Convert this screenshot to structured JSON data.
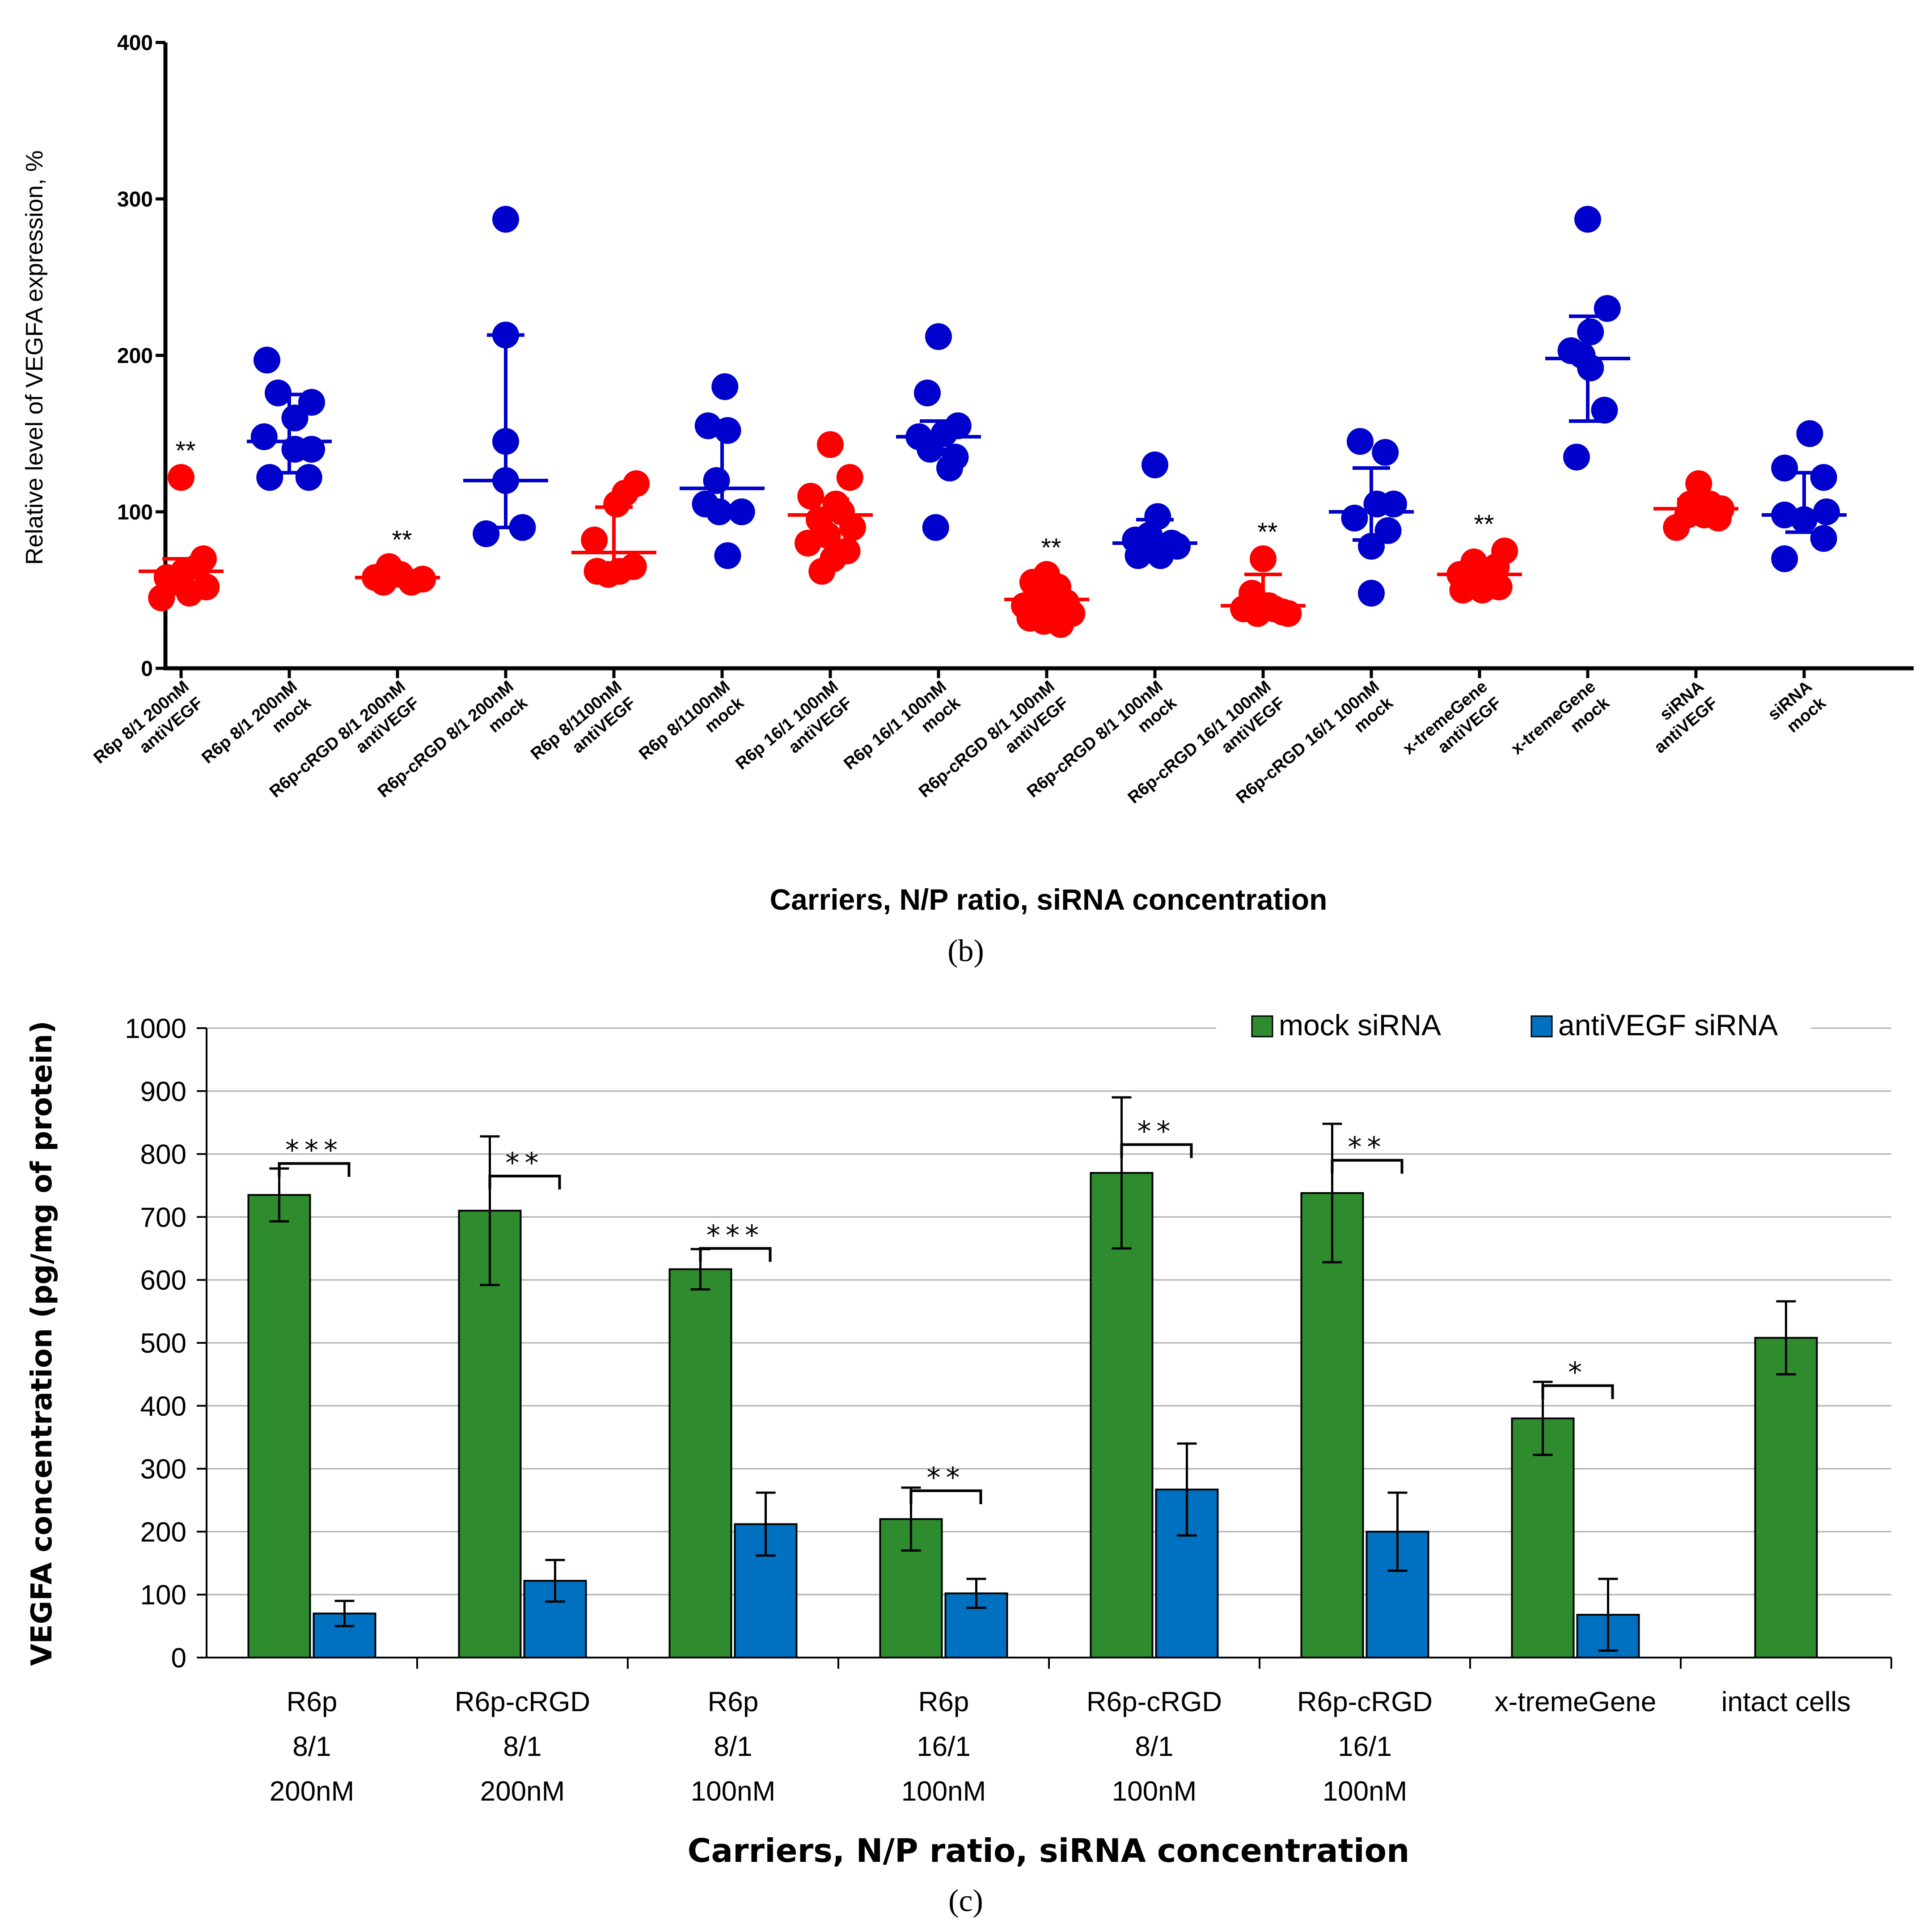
{
  "chart_data": [
    {
      "panel": "b-top",
      "type": "scatter",
      "title": "",
      "xlabel": "Carriers, N/P ratio, siRNA concentration",
      "ylabel": "Relative level of VEGFA expression, %",
      "ylim": [
        0,
        400
      ],
      "yticks": [
        "0",
        "100",
        "200",
        "300",
        "400"
      ],
      "grid": false,
      "colors": {
        "antiVEGF": "#ff0000",
        "mock": "#0000cc"
      },
      "groups": [
        {
          "label": [
            "R6p 8/1 200nM",
            "antiVEGF"
          ],
          "kind": "antiVEGF",
          "sig": "**",
          "mean": 62,
          "lower": 52,
          "upper": 70,
          "points": [
            [
              -0.35,
              45
            ],
            [
              -0.25,
              58
            ],
            [
              -0.1,
              55
            ],
            [
              0.05,
              62
            ],
            [
              0.15,
              48
            ],
            [
              0.3,
              65
            ],
            [
              0.4,
              70
            ],
            [
              0.45,
              52
            ],
            [
              0,
              122
            ]
          ]
        },
        {
          "label": [
            "R6p 8/1 200nM",
            "mock"
          ],
          "kind": "mock",
          "sig": "",
          "mean": 145,
          "lower": 125,
          "upper": 175,
          "points": [
            [
              -0.4,
              197
            ],
            [
              -0.45,
              148
            ],
            [
              -0.35,
              122
            ],
            [
              -0.2,
              176
            ],
            [
              0.1,
              160
            ],
            [
              0.1,
              140
            ],
            [
              0.4,
              170
            ],
            [
              0.4,
              140
            ],
            [
              0.35,
              122
            ]
          ]
        },
        {
          "label": [
            "R6p-cRGD 8/1 200nM",
            "antiVEGF"
          ],
          "kind": "antiVEGF",
          "sig": "**",
          "mean": 58,
          "lower": 55,
          "upper": 62,
          "points": [
            [
              -0.4,
              58
            ],
            [
              -0.15,
              65
            ],
            [
              0.05,
              60
            ],
            [
              0.25,
              55
            ],
            [
              0.45,
              57
            ],
            [
              -0.25,
              55
            ]
          ]
        },
        {
          "label": [
            "R6p-cRGD 8/1 200nM",
            "mock"
          ],
          "kind": "mock",
          "sig": "",
          "mean": 120,
          "lower": 90,
          "upper": 213,
          "points": [
            [
              0,
              287
            ],
            [
              0,
              213
            ],
            [
              0,
              145
            ],
            [
              0,
              120
            ],
            [
              -0.35,
              86
            ],
            [
              0.3,
              90
            ]
          ]
        },
        {
          "label": [
            "R6p 8/1100nM",
            "antiVEGF"
          ],
          "kind": "antiVEGF",
          "sig": "",
          "mean": 74,
          "lower": 62,
          "upper": 103,
          "points": [
            [
              -0.35,
              82
            ],
            [
              -0.3,
              62
            ],
            [
              -0.1,
              60
            ],
            [
              0.05,
              105
            ],
            [
              0.2,
              112
            ],
            [
              0.4,
              118
            ],
            [
              0.35,
              65
            ],
            [
              0.1,
              62
            ]
          ]
        },
        {
          "label": [
            "R6p 8/1100nM",
            "mock"
          ],
          "kind": "mock",
          "sig": "",
          "mean": 115,
          "lower": 100,
          "upper": 153,
          "points": [
            [
              -0.25,
              155
            ],
            [
              0.05,
              180
            ],
            [
              0.1,
              152
            ],
            [
              -0.1,
              120
            ],
            [
              -0.3,
              105
            ],
            [
              -0.05,
              100
            ],
            [
              0.35,
              100
            ],
            [
              0.1,
              72
            ]
          ]
        },
        {
          "label": [
            "R6p 16/1 100nM",
            "antiVEGF"
          ],
          "kind": "antiVEGF",
          "sig": "",
          "mean": 98,
          "lower": 88,
          "upper": 108,
          "points": [
            [
              0,
              143
            ],
            [
              0.35,
              122
            ],
            [
              -0.35,
              110
            ],
            [
              -0.2,
              95
            ],
            [
              0.1,
              105
            ],
            [
              0.4,
              90
            ],
            [
              -0.4,
              80
            ],
            [
              0.3,
              75
            ],
            [
              0.05,
              70
            ],
            [
              -0.15,
              62
            ],
            [
              0.2,
              100
            ],
            [
              -0.05,
              85
            ]
          ]
        },
        {
          "label": [
            "R6p 16/1 100nM",
            "mock"
          ],
          "kind": "mock",
          "sig": "",
          "mean": 148,
          "lower": 140,
          "upper": 158,
          "points": [
            [
              0,
              212
            ],
            [
              -0.2,
              176
            ],
            [
              0.35,
              155
            ],
            [
              0.1,
              150
            ],
            [
              -0.35,
              148
            ],
            [
              -0.15,
              140
            ],
            [
              0.2,
              128
            ],
            [
              -0.05,
              90
            ],
            [
              0.3,
              135
            ]
          ]
        },
        {
          "label": [
            "R6p-cRGD 8/1 100nM",
            "antiVEGF"
          ],
          "kind": "antiVEGF",
          "sig": "**",
          "mean": 44,
          "lower": 38,
          "upper": 50,
          "points": [
            [
              0,
              60
            ],
            [
              -0.25,
              55
            ],
            [
              0.2,
              52
            ],
            [
              -0.4,
              40
            ],
            [
              -0.1,
              45
            ],
            [
              0.1,
              38
            ],
            [
              0.35,
              42
            ],
            [
              -0.3,
              32
            ],
            [
              -0.05,
              30
            ],
            [
              0.25,
              28
            ],
            [
              0.45,
              35
            ]
          ]
        },
        {
          "label": [
            "R6p-cRGD 8/1 100nM",
            "mock"
          ],
          "kind": "mock",
          "sig": "",
          "mean": 80,
          "lower": 72,
          "upper": 95,
          "points": [
            [
              0,
              130
            ],
            [
              0.05,
              97
            ],
            [
              -0.35,
              82
            ],
            [
              -0.1,
              85
            ],
            [
              0.3,
              80
            ],
            [
              -0.3,
              72
            ],
            [
              0.1,
              72
            ],
            [
              0.4,
              78
            ]
          ]
        },
        {
          "label": [
            "R6p-cRGD 16/1 100nM",
            "antiVEGF"
          ],
          "kind": "antiVEGF",
          "sig": "**",
          "mean": 40,
          "lower": 36,
          "upper": 60,
          "points": [
            [
              0,
              70
            ],
            [
              -0.2,
              48
            ],
            [
              -0.35,
              38
            ],
            [
              0.1,
              40
            ],
            [
              0.35,
              36
            ],
            [
              0.45,
              35
            ],
            [
              -0.1,
              35
            ],
            [
              0.2,
              38
            ]
          ]
        },
        {
          "label": [
            "R6p-cRGD 16/1 100nM",
            "mock"
          ],
          "kind": "mock",
          "sig": "",
          "mean": 100,
          "lower": 82,
          "upper": 128,
          "points": [
            [
              -0.2,
              145
            ],
            [
              0.25,
              138
            ],
            [
              -0.3,
              96
            ],
            [
              0.1,
              105
            ],
            [
              0.4,
              105
            ],
            [
              0.3,
              88
            ],
            [
              0,
              78
            ],
            [
              0,
              48
            ]
          ]
        },
        {
          "label": [
            "x-tremeGene",
            "antiVEGF"
          ],
          "kind": "antiVEGF",
          "sig": "**",
          "mean": 60,
          "lower": 55,
          "upper": 68,
          "points": [
            [
              -0.35,
              60
            ],
            [
              -0.1,
              68
            ],
            [
              0.1,
              58
            ],
            [
              0.3,
              65
            ],
            [
              0.45,
              75
            ],
            [
              -0.3,
              50
            ],
            [
              0.05,
              50
            ],
            [
              0.35,
              52
            ]
          ]
        },
        {
          "label": [
            "x-tremeGene",
            "mock"
          ],
          "kind": "mock",
          "sig": "",
          "mean": 198,
          "lower": 158,
          "upper": 225,
          "points": [
            [
              0,
              287
            ],
            [
              0.35,
              230
            ],
            [
              0.05,
              215
            ],
            [
              -0.3,
              203
            ],
            [
              -0.1,
              200
            ],
            [
              0.05,
              192
            ],
            [
              0.3,
              165
            ],
            [
              -0.2,
              135
            ]
          ]
        },
        {
          "label": [
            "siRNA",
            "antiVEGF"
          ],
          "kind": "antiVEGF",
          "sig": "",
          "mean": 102,
          "lower": 97,
          "upper": 108,
          "points": [
            [
              -0.1,
              105
            ],
            [
              0.05,
              118
            ],
            [
              0.25,
              105
            ],
            [
              -0.35,
              90
            ],
            [
              -0.15,
              98
            ],
            [
              0.15,
              98
            ],
            [
              0.4,
              96
            ],
            [
              0.45,
              102
            ]
          ]
        },
        {
          "label": [
            "siRNA",
            "mock"
          ],
          "kind": "mock",
          "sig": "",
          "mean": 98,
          "lower": 87,
          "upper": 125,
          "points": [
            [
              0.1,
              150
            ],
            [
              -0.35,
              128
            ],
            [
              0.35,
              122
            ],
            [
              -0.35,
              98
            ],
            [
              0,
              95
            ],
            [
              0.4,
              100
            ],
            [
              -0.35,
              70
            ],
            [
              0.35,
              83
            ]
          ]
        }
      ]
    },
    {
      "panel": "c",
      "type": "bar",
      "title": "",
      "xlabel": "Carriers, N/P ratio, siRNA concentration",
      "ylabel": "VEGFA concentration (pg/mg of protein)",
      "ylim": [
        0,
        1000
      ],
      "yticks": [
        "0",
        "100",
        "200",
        "300",
        "400",
        "500",
        "600",
        "700",
        "800",
        "900",
        "1000"
      ],
      "grid": true,
      "legend_position": "top-right",
      "categories": [
        [
          "R6p",
          "8/1",
          "200nM"
        ],
        [
          "R6p-cRGD",
          "8/1",
          "200nM"
        ],
        [
          "R6p",
          "8/1",
          "100nM"
        ],
        [
          "R6p",
          "16/1",
          "100nM"
        ],
        [
          "R6p-cRGD",
          "8/1",
          "100nM"
        ],
        [
          "R6p-cRGD",
          "16/1",
          "100nM"
        ],
        [
          "x-tremeGene"
        ],
        [
          "intact cells"
        ]
      ],
      "series": [
        {
          "name": "mock siRNA",
          "color": "#2e8b2e",
          "values": [
            735,
            710,
            617,
            220,
            770,
            738,
            380,
            508
          ],
          "err": [
            42,
            118,
            32,
            50,
            120,
            110,
            58,
            58
          ]
        },
        {
          "name": "antiVEGF siRNA",
          "color": "#0070c0",
          "values": [
            70,
            122,
            212,
            102,
            267,
            200,
            68,
            null
          ],
          "err": [
            20,
            33,
            50,
            23,
            73,
            62,
            57,
            null
          ]
        }
      ],
      "significance": [
        "***",
        "**",
        "***",
        "**",
        "**",
        "**",
        "*",
        ""
      ]
    }
  ],
  "panel_labels": {
    "b": "(b)",
    "c": "(c)"
  }
}
